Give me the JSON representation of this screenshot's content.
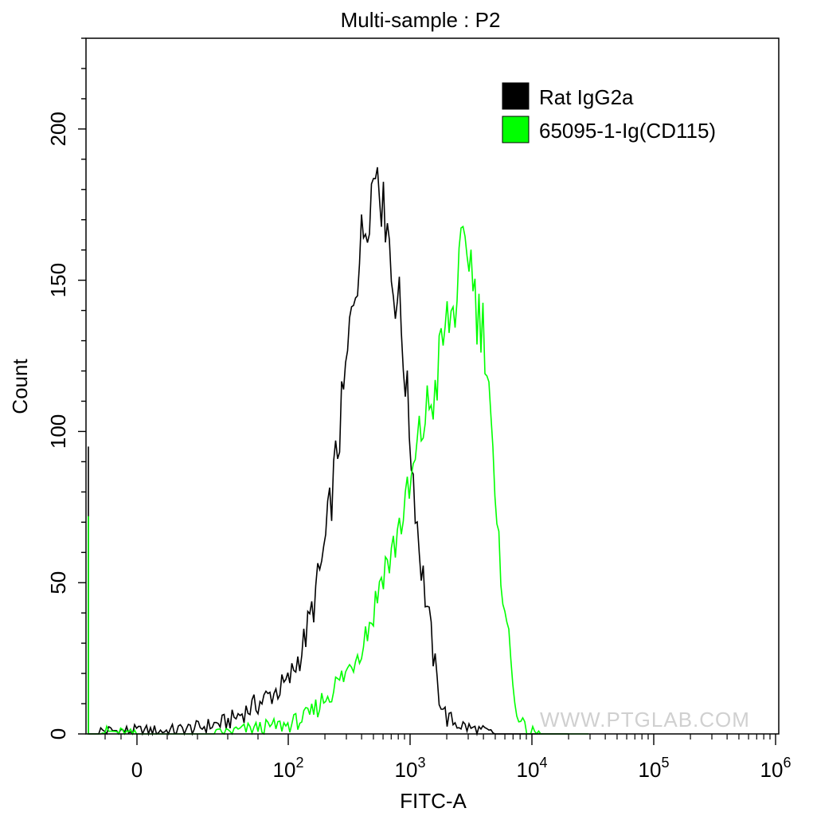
{
  "chart_data": {
    "type": "line",
    "title": "Multi-sample : P2",
    "xlabel": "FITC-A",
    "ylabel": "Count",
    "x_scale": "biexponential",
    "xlim": [
      -60,
      1000000
    ],
    "ylim": [
      0,
      230
    ],
    "x_ticks": [
      {
        "base": "0",
        "exp": ""
      },
      {
        "base": "10",
        "exp": "2"
      },
      {
        "base": "10",
        "exp": "3"
      },
      {
        "base": "10",
        "exp": "4"
      },
      {
        "base": "10",
        "exp": "5"
      },
      {
        "base": "10",
        "exp": "6"
      }
    ],
    "y_ticks": [
      "0",
      "50",
      "100",
      "150",
      "200"
    ],
    "legend_position": "top-right",
    "watermark": "WWW.PTGLAB.COM",
    "series": [
      {
        "name": "Rat IgG2a",
        "color": "#000000",
        "points": [
          [
            -50,
            1
          ],
          [
            0,
            1
          ],
          [
            20,
            1
          ],
          [
            40,
            2
          ],
          [
            60,
            4
          ],
          [
            80,
            10
          ],
          [
            100,
            17
          ],
          [
            130,
            28
          ],
          [
            160,
            42
          ],
          [
            200,
            62
          ],
          [
            250,
            92
          ],
          [
            300,
            120
          ],
          [
            350,
            150
          ],
          [
            400,
            162
          ],
          [
            450,
            176
          ],
          [
            500,
            183
          ],
          [
            550,
            194
          ],
          [
            600,
            170
          ],
          [
            650,
            177
          ],
          [
            700,
            150
          ],
          [
            800,
            145
          ],
          [
            900,
            122
          ],
          [
            1000,
            98
          ],
          [
            1200,
            60
          ],
          [
            1400,
            40
          ],
          [
            1700,
            14
          ],
          [
            2000,
            5
          ],
          [
            3000,
            2
          ],
          [
            5000,
            0
          ],
          [
            20000,
            0
          ]
        ]
      },
      {
        "name": "65095-1-Ig(CD115)",
        "color": "#00ff00",
        "points": [
          [
            -50,
            1
          ],
          [
            0,
            0
          ],
          [
            50,
            0
          ],
          [
            80,
            2
          ],
          [
            100,
            3
          ],
          [
            150,
            6
          ],
          [
            200,
            12
          ],
          [
            300,
            20
          ],
          [
            400,
            30
          ],
          [
            500,
            40
          ],
          [
            600,
            55
          ],
          [
            700,
            58
          ],
          [
            800,
            68
          ],
          [
            1000,
            80
          ],
          [
            1200,
            98
          ],
          [
            1400,
            108
          ],
          [
            1600,
            112
          ],
          [
            1800,
            128
          ],
          [
            2000,
            135
          ],
          [
            2300,
            140
          ],
          [
            2600,
            155
          ],
          [
            3000,
            162
          ],
          [
            3200,
            155
          ],
          [
            3600,
            138
          ],
          [
            4000,
            135
          ],
          [
            4500,
            115
          ],
          [
            5000,
            70
          ],
          [
            5500,
            55
          ],
          [
            6000,
            45
          ],
          [
            7000,
            15
          ],
          [
            8000,
            4
          ],
          [
            9000,
            1
          ],
          [
            12000,
            0
          ],
          [
            30000,
            0
          ]
        ]
      }
    ]
  }
}
